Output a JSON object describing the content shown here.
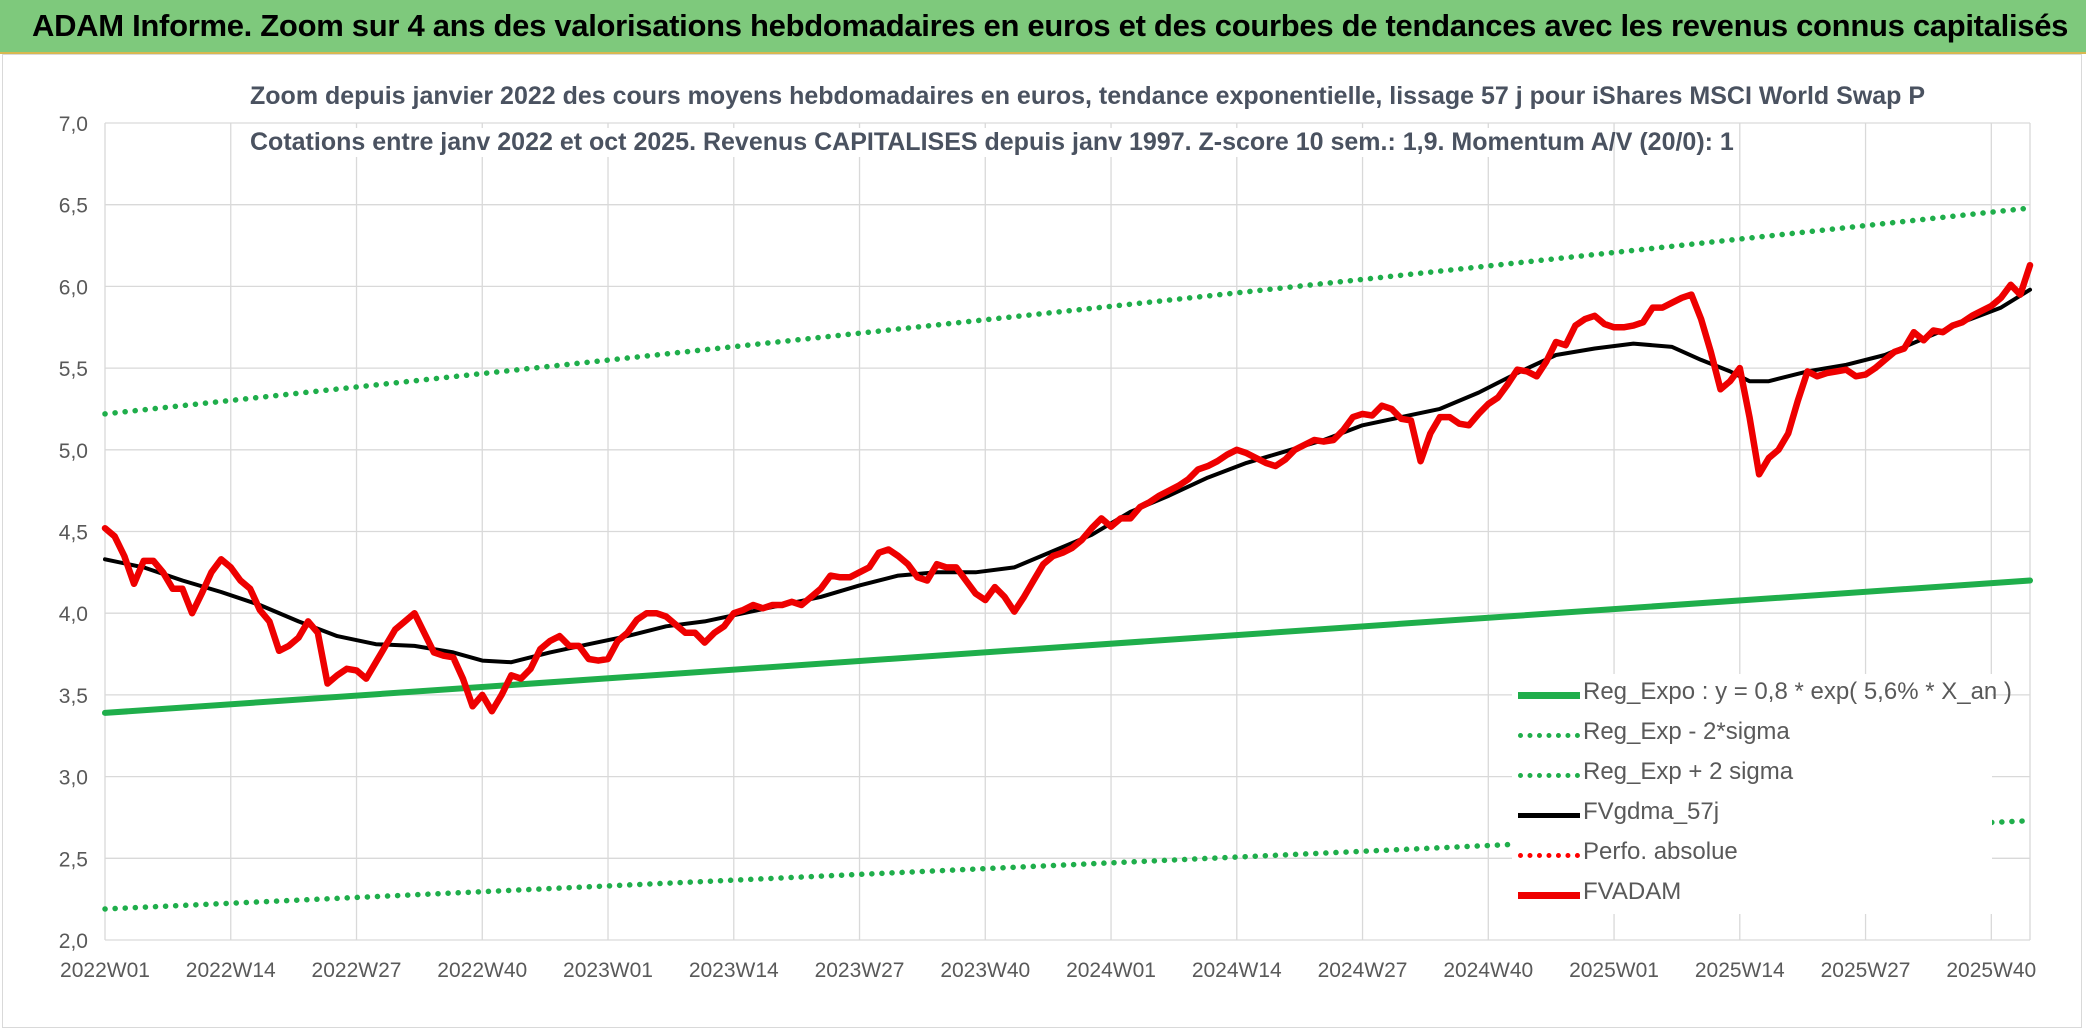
{
  "header": {
    "title": "ADAM Informe. Zoom sur 4 ans des valorisations hebdomadaires en euros et des courbes de tendances avec les revenus connus capitalisés"
  },
  "chart_data": {
    "type": "line",
    "title": "Zoom depuis janvier 2022 des cours moyens hebdomadaires en euros, tendance exponentielle, lissage 57 j pour iShares MSCI World Swap P",
    "subtitle": "Cotations entre janv 2022 et oct 2025. Revenus CAPITALISES depuis janv 1997. Z-score 10 sem.: 1,9. Momentum A/V (20/0): 1",
    "xlabel": "",
    "ylabel": "",
    "ylim": [
      2.0,
      7.0
    ],
    "y_ticks": [
      "2,0",
      "2,5",
      "3,0",
      "3,5",
      "4,0",
      "4,5",
      "5,0",
      "5,5",
      "6,0",
      "6,5",
      "7,0"
    ],
    "x_range": [
      0,
      199
    ],
    "x_ticks": [
      {
        "x": 0,
        "label": "2022W01"
      },
      {
        "x": 13,
        "label": "2022W14"
      },
      {
        "x": 26,
        "label": "2022W27"
      },
      {
        "x": 39,
        "label": "2022W40"
      },
      {
        "x": 52,
        "label": "2023W01"
      },
      {
        "x": 65,
        "label": "2023W14"
      },
      {
        "x": 78,
        "label": "2023W27"
      },
      {
        "x": 91,
        "label": "2023W40"
      },
      {
        "x": 104,
        "label": "2024W01"
      },
      {
        "x": 117,
        "label": "2024W14"
      },
      {
        "x": 130,
        "label": "2024W27"
      },
      {
        "x": 143,
        "label": "2024W40"
      },
      {
        "x": 156,
        "label": "2025W01"
      },
      {
        "x": 169,
        "label": "2025W14"
      },
      {
        "x": 182,
        "label": "2025W27"
      },
      {
        "x": 195,
        "label": "2025W40"
      }
    ],
    "grid": true,
    "legend_position": "bottom-right",
    "series": [
      {
        "name": "Reg_Expo : y = 0,8 * exp( 5,6% *  X_an )",
        "color": "#1fae4b",
        "style": "solid",
        "points": [
          [
            0,
            3.39
          ],
          [
            199,
            4.2
          ]
        ]
      },
      {
        "name": "Reg_Exp - 2*sigma",
        "color": "#1fae4b",
        "style": "dotted",
        "points": [
          [
            0,
            2.19
          ],
          [
            199,
            2.73
          ]
        ]
      },
      {
        "name": "Reg_Exp + 2 sigma",
        "color": "#1fae4b",
        "style": "dotted",
        "points": [
          [
            0,
            5.22
          ],
          [
            199,
            6.48
          ]
        ]
      },
      {
        "name": "FVgdma_57j",
        "color": "#000000",
        "style": "solid",
        "points": [
          [
            0,
            4.33
          ],
          [
            4,
            4.28
          ],
          [
            8,
            4.2
          ],
          [
            12,
            4.13
          ],
          [
            16,
            4.05
          ],
          [
            20,
            3.95
          ],
          [
            24,
            3.86
          ],
          [
            28,
            3.81
          ],
          [
            32,
            3.8
          ],
          [
            36,
            3.76
          ],
          [
            39,
            3.71
          ],
          [
            42,
            3.7
          ],
          [
            46,
            3.76
          ],
          [
            50,
            3.81
          ],
          [
            54,
            3.86
          ],
          [
            58,
            3.92
          ],
          [
            62,
            3.95
          ],
          [
            66,
            4.0
          ],
          [
            70,
            4.05
          ],
          [
            74,
            4.1
          ],
          [
            78,
            4.17
          ],
          [
            82,
            4.23
          ],
          [
            86,
            4.25
          ],
          [
            90,
            4.25
          ],
          [
            94,
            4.28
          ],
          [
            98,
            4.38
          ],
          [
            102,
            4.48
          ],
          [
            106,
            4.62
          ],
          [
            110,
            4.72
          ],
          [
            114,
            4.83
          ],
          [
            118,
            4.92
          ],
          [
            122,
            4.99
          ],
          [
            126,
            5.06
          ],
          [
            130,
            5.15
          ],
          [
            134,
            5.2
          ],
          [
            138,
            5.25
          ],
          [
            142,
            5.35
          ],
          [
            146,
            5.47
          ],
          [
            150,
            5.58
          ],
          [
            154,
            5.62
          ],
          [
            158,
            5.65
          ],
          [
            162,
            5.63
          ],
          [
            165,
            5.55
          ],
          [
            168,
            5.48
          ],
          [
            170,
            5.42
          ],
          [
            172,
            5.42
          ],
          [
            176,
            5.48
          ],
          [
            180,
            5.52
          ],
          [
            184,
            5.58
          ],
          [
            188,
            5.68
          ],
          [
            192,
            5.78
          ],
          [
            196,
            5.87
          ],
          [
            199,
            5.98
          ]
        ]
      },
      {
        "name": "Perfo. absolue",
        "color": "#ff0000",
        "style": "dotted",
        "points": []
      },
      {
        "name": "FVADAM",
        "color": "#ee0000",
        "style": "solid",
        "points": [
          [
            0,
            4.52
          ],
          [
            1,
            4.47
          ],
          [
            2,
            4.35
          ],
          [
            3,
            4.18
          ],
          [
            4,
            4.32
          ],
          [
            5,
            4.32
          ],
          [
            6,
            4.25
          ],
          [
            7,
            4.15
          ],
          [
            8,
            4.15
          ],
          [
            9,
            4.0
          ],
          [
            10,
            4.12
          ],
          [
            11,
            4.25
          ],
          [
            12,
            4.33
          ],
          [
            13,
            4.28
          ],
          [
            14,
            4.2
          ],
          [
            15,
            4.15
          ],
          [
            16,
            4.02
          ],
          [
            17,
            3.95
          ],
          [
            18,
            3.77
          ],
          [
            19,
            3.8
          ],
          [
            20,
            3.85
          ],
          [
            21,
            3.95
          ],
          [
            22,
            3.88
          ],
          [
            23,
            3.57
          ],
          [
            24,
            3.62
          ],
          [
            25,
            3.66
          ],
          [
            26,
            3.65
          ],
          [
            27,
            3.6
          ],
          [
            28,
            3.7
          ],
          [
            29,
            3.8
          ],
          [
            30,
            3.9
          ],
          [
            31,
            3.95
          ],
          [
            32,
            4.0
          ],
          [
            33,
            3.88
          ],
          [
            34,
            3.76
          ],
          [
            35,
            3.74
          ],
          [
            36,
            3.73
          ],
          [
            37,
            3.6
          ],
          [
            38,
            3.43
          ],
          [
            39,
            3.5
          ],
          [
            40,
            3.4
          ],
          [
            41,
            3.5
          ],
          [
            42,
            3.62
          ],
          [
            43,
            3.6
          ],
          [
            44,
            3.66
          ],
          [
            45,
            3.78
          ],
          [
            46,
            3.83
          ],
          [
            47,
            3.86
          ],
          [
            48,
            3.8
          ],
          [
            49,
            3.8
          ],
          [
            50,
            3.72
          ],
          [
            51,
            3.71
          ],
          [
            52,
            3.72
          ],
          [
            53,
            3.83
          ],
          [
            54,
            3.88
          ],
          [
            55,
            3.96
          ],
          [
            56,
            4.0
          ],
          [
            57,
            4.0
          ],
          [
            58,
            3.98
          ],
          [
            59,
            3.93
          ],
          [
            60,
            3.88
          ],
          [
            61,
            3.88
          ],
          [
            62,
            3.82
          ],
          [
            63,
            3.88
          ],
          [
            64,
            3.92
          ],
          [
            65,
            4.0
          ],
          [
            66,
            4.02
          ],
          [
            67,
            4.05
          ],
          [
            68,
            4.03
          ],
          [
            69,
            4.05
          ],
          [
            70,
            4.05
          ],
          [
            71,
            4.07
          ],
          [
            72,
            4.05
          ],
          [
            73,
            4.1
          ],
          [
            74,
            4.15
          ],
          [
            75,
            4.23
          ],
          [
            76,
            4.22
          ],
          [
            77,
            4.22
          ],
          [
            78,
            4.25
          ],
          [
            79,
            4.28
          ],
          [
            80,
            4.37
          ],
          [
            81,
            4.39
          ],
          [
            82,
            4.35
          ],
          [
            83,
            4.3
          ],
          [
            84,
            4.22
          ],
          [
            85,
            4.2
          ],
          [
            86,
            4.3
          ],
          [
            87,
            4.28
          ],
          [
            88,
            4.28
          ],
          [
            89,
            4.2
          ],
          [
            90,
            4.12
          ],
          [
            91,
            4.08
          ],
          [
            92,
            4.16
          ],
          [
            93,
            4.1
          ],
          [
            94,
            4.01
          ],
          [
            95,
            4.1
          ],
          [
            96,
            4.2
          ],
          [
            97,
            4.3
          ],
          [
            98,
            4.35
          ],
          [
            99,
            4.37
          ],
          [
            100,
            4.4
          ],
          [
            101,
            4.45
          ],
          [
            102,
            4.52
          ],
          [
            103,
            4.58
          ],
          [
            104,
            4.53
          ],
          [
            105,
            4.58
          ],
          [
            106,
            4.58
          ],
          [
            107,
            4.65
          ],
          [
            108,
            4.68
          ],
          [
            109,
            4.72
          ],
          [
            110,
            4.75
          ],
          [
            111,
            4.78
          ],
          [
            112,
            4.82
          ],
          [
            113,
            4.88
          ],
          [
            114,
            4.9
          ],
          [
            115,
            4.93
          ],
          [
            116,
            4.97
          ],
          [
            117,
            5.0
          ],
          [
            118,
            4.98
          ],
          [
            119,
            4.95
          ],
          [
            120,
            4.92
          ],
          [
            121,
            4.9
          ],
          [
            122,
            4.94
          ],
          [
            123,
            5.0
          ],
          [
            124,
            5.03
          ],
          [
            125,
            5.06
          ],
          [
            126,
            5.05
          ],
          [
            127,
            5.06
          ],
          [
            128,
            5.12
          ],
          [
            129,
            5.2
          ],
          [
            130,
            5.22
          ],
          [
            131,
            5.21
          ],
          [
            132,
            5.27
          ],
          [
            133,
            5.25
          ],
          [
            134,
            5.19
          ],
          [
            135,
            5.18
          ],
          [
            136,
            4.93
          ],
          [
            137,
            5.1
          ],
          [
            138,
            5.2
          ],
          [
            139,
            5.2
          ],
          [
            140,
            5.16
          ],
          [
            141,
            5.15
          ],
          [
            142,
            5.22
          ],
          [
            143,
            5.28
          ],
          [
            144,
            5.32
          ],
          [
            145,
            5.4
          ],
          [
            146,
            5.49
          ],
          [
            147,
            5.48
          ],
          [
            148,
            5.45
          ],
          [
            149,
            5.54
          ],
          [
            150,
            5.66
          ],
          [
            151,
            5.64
          ],
          [
            152,
            5.76
          ],
          [
            153,
            5.8
          ],
          [
            154,
            5.82
          ],
          [
            155,
            5.77
          ],
          [
            156,
            5.75
          ],
          [
            157,
            5.75
          ],
          [
            158,
            5.76
          ],
          [
            159,
            5.78
          ],
          [
            160,
            5.87
          ],
          [
            161,
            5.87
          ],
          [
            162,
            5.9
          ],
          [
            163,
            5.93
          ],
          [
            164,
            5.95
          ],
          [
            165,
            5.8
          ],
          [
            166,
            5.6
          ],
          [
            167,
            5.37
          ],
          [
            168,
            5.42
          ],
          [
            169,
            5.5
          ],
          [
            170,
            5.2
          ],
          [
            171,
            4.85
          ],
          [
            172,
            4.95
          ],
          [
            173,
            5.0
          ],
          [
            174,
            5.1
          ],
          [
            175,
            5.3
          ],
          [
            176,
            5.48
          ],
          [
            177,
            5.45
          ],
          [
            178,
            5.47
          ],
          [
            179,
            5.48
          ],
          [
            180,
            5.49
          ],
          [
            181,
            5.45
          ],
          [
            182,
            5.46
          ],
          [
            183,
            5.5
          ],
          [
            184,
            5.55
          ],
          [
            185,
            5.6
          ],
          [
            186,
            5.62
          ],
          [
            187,
            5.72
          ],
          [
            188,
            5.67
          ],
          [
            189,
            5.73
          ],
          [
            190,
            5.72
          ],
          [
            191,
            5.76
          ],
          [
            192,
            5.78
          ],
          [
            193,
            5.82
          ],
          [
            194,
            5.85
          ],
          [
            195,
            5.88
          ],
          [
            196,
            5.93
          ],
          [
            197,
            6.01
          ],
          [
            198,
            5.95
          ],
          [
            199,
            6.13
          ]
        ]
      }
    ]
  }
}
